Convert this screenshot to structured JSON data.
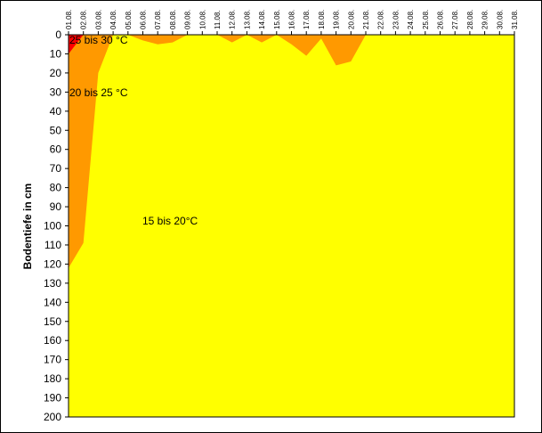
{
  "chart_data": {
    "type": "area",
    "y_label": "Bodentiefe in cm",
    "categories": [
      "01.08.",
      "02.08.",
      "03.08.",
      "04.08.",
      "05.08.",
      "06.08.",
      "07.08.",
      "08.08.",
      "09.08.",
      "10.08.",
      "11.08.",
      "12.08.",
      "13.08.",
      "14.08.",
      "15.08.",
      "16.08.",
      "17.08.",
      "18.08.",
      "19.08.",
      "20.08.",
      "21.08.",
      "22.08.",
      "23.08.",
      "24.08.",
      "25.08.",
      "26.08.",
      "27.08.",
      "28.08.",
      "29.08.",
      "30.08.",
      "31.08."
    ],
    "series": [
      {
        "name": "15 bis 20°C",
        "color": "#ffff00",
        "values": [
          200,
          200,
          200,
          200,
          200,
          200,
          200,
          200,
          200,
          200,
          200,
          200,
          200,
          200,
          200,
          200,
          200,
          200,
          200,
          200,
          200,
          200,
          200,
          200,
          200,
          200,
          200,
          200,
          200,
          200,
          200
        ]
      },
      {
        "name": "20 bis 25 °C",
        "color": "#ff9900",
        "values": [
          122,
          109,
          20,
          0,
          0,
          3,
          5,
          4,
          0,
          0,
          0,
          4,
          0,
          4,
          0,
          5,
          11,
          2,
          16,
          14,
          0,
          0,
          0,
          0,
          0,
          0,
          0,
          0,
          0,
          0,
          0
        ]
      },
      {
        "name": "25 bis 30 °C",
        "color": "#ff0000",
        "values": [
          10,
          0,
          0,
          0,
          0,
          0,
          0,
          0,
          0,
          0,
          0,
          0,
          0,
          0,
          0,
          0,
          0,
          0,
          0,
          0,
          0,
          0,
          0,
          0,
          0,
          0,
          0,
          0,
          0,
          0,
          0
        ]
      }
    ],
    "ylim": [
      0,
      200
    ],
    "y_inverted": true,
    "yticks": [
      0,
      10,
      20,
      30,
      40,
      50,
      60,
      70,
      80,
      90,
      100,
      110,
      120,
      130,
      140,
      150,
      160,
      170,
      180,
      190,
      200
    ]
  }
}
